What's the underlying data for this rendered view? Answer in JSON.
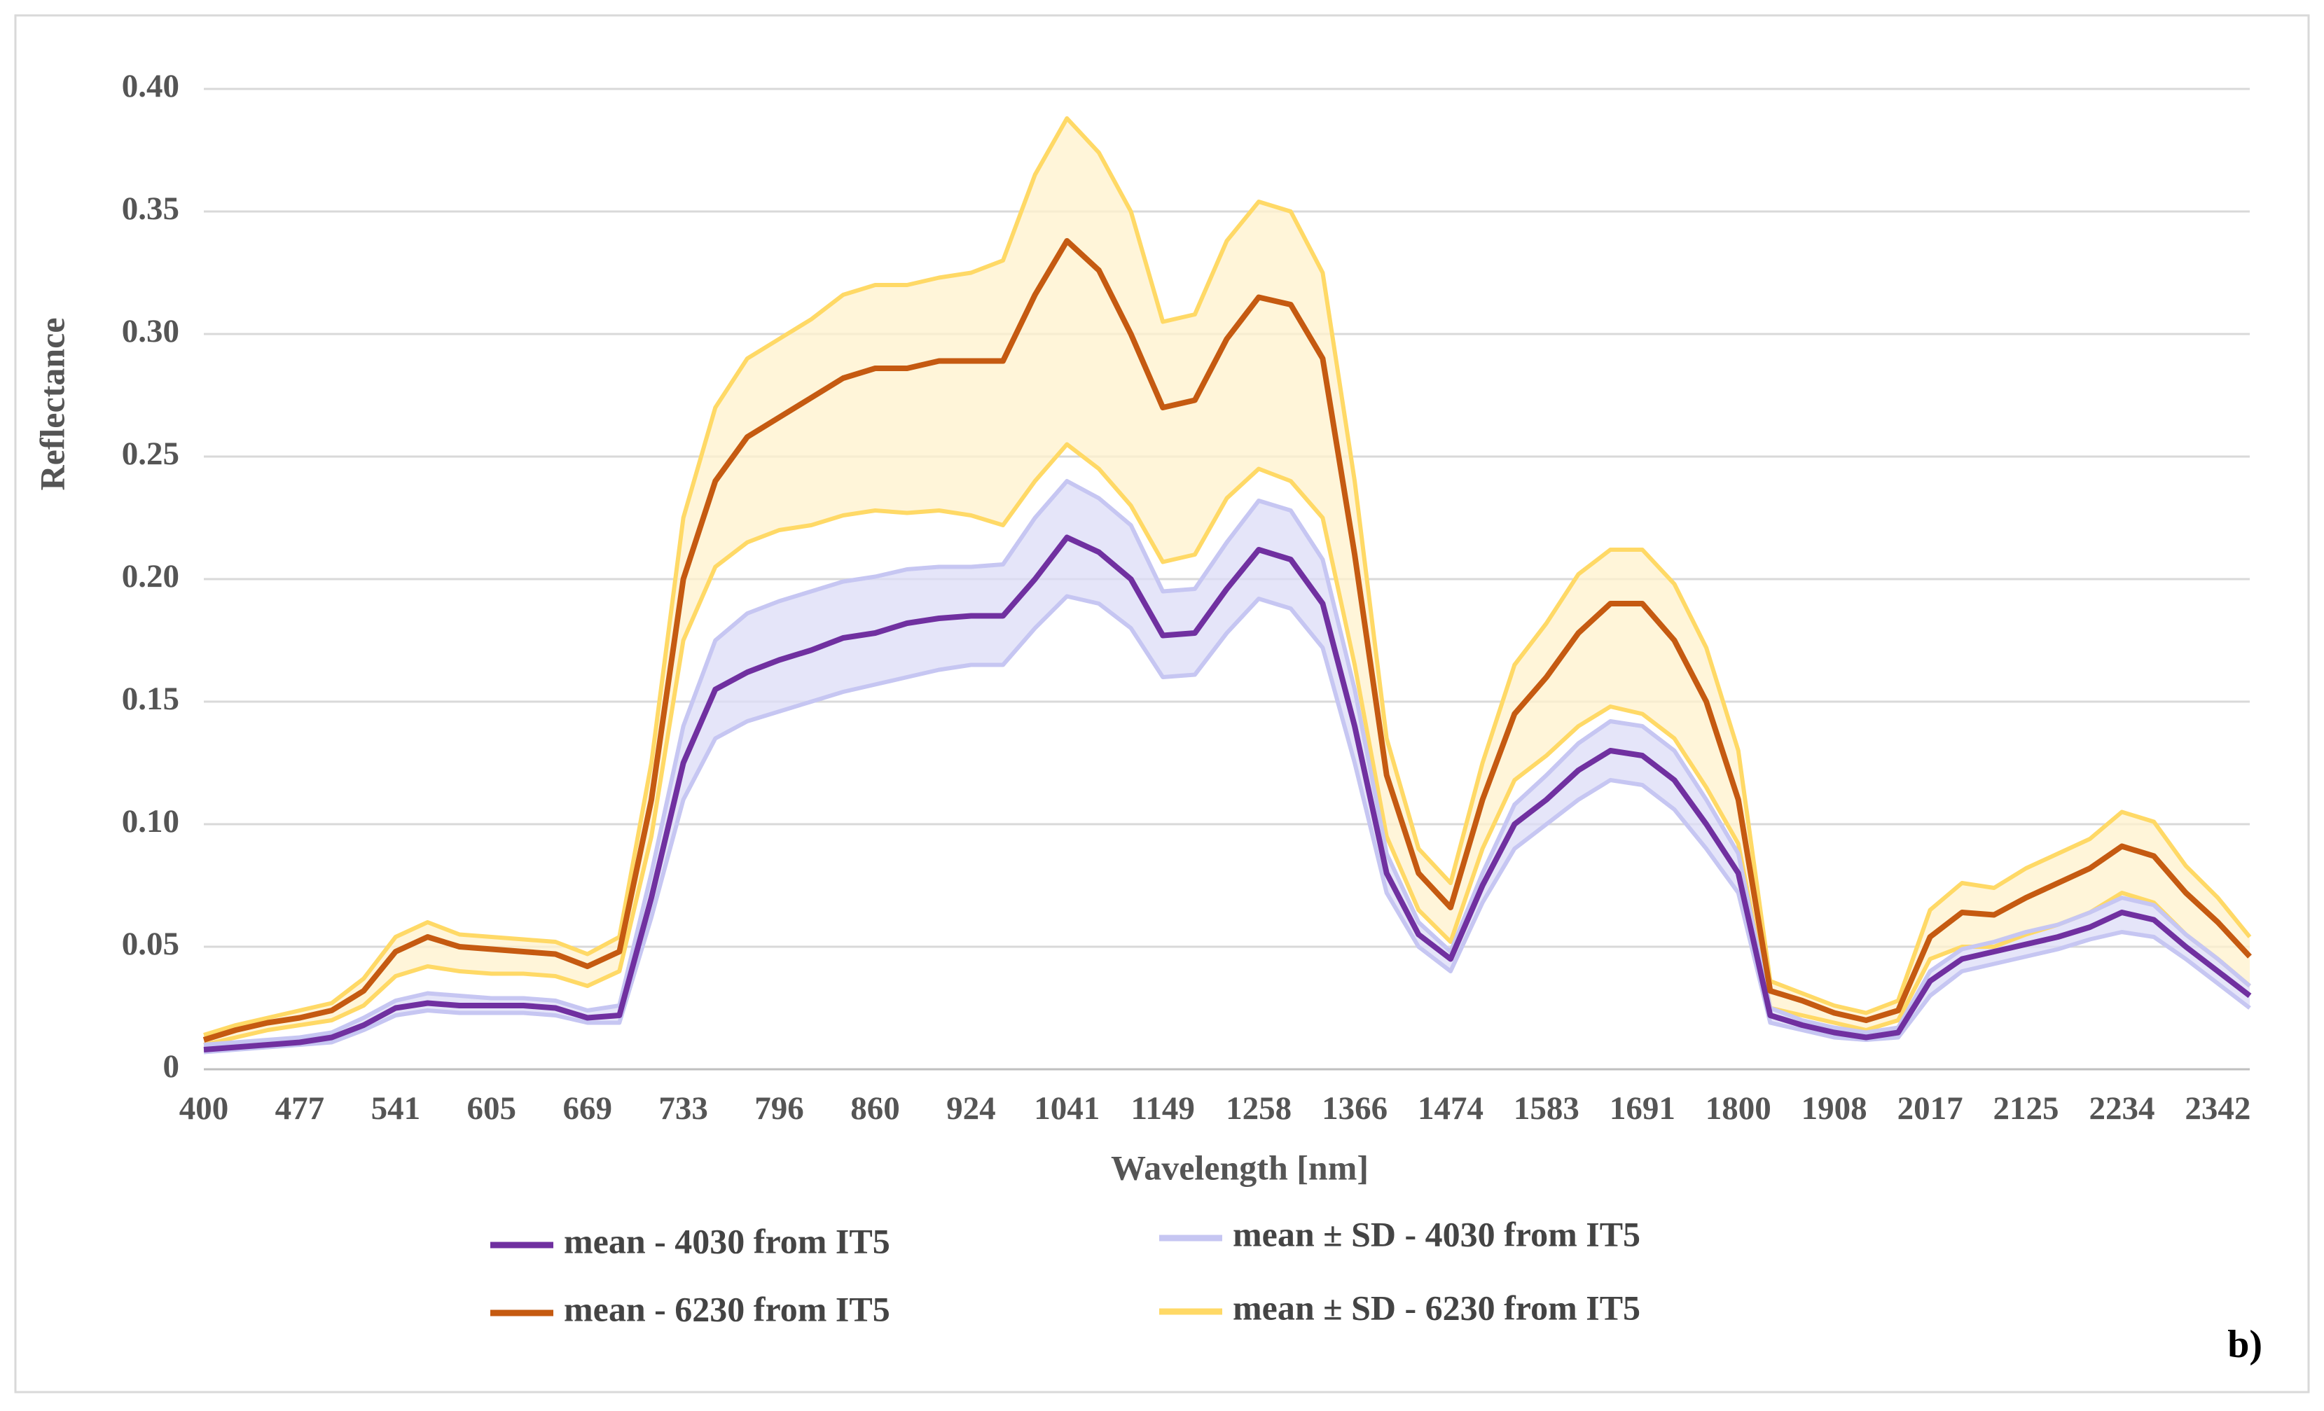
{
  "chart_data": {
    "type": "line",
    "xlabel": "Wavelength [nm]",
    "ylabel": "Reflectance",
    "annotation": "b)",
    "grid": true,
    "ylim": [
      0,
      0.4
    ],
    "yticks": [
      0,
      0.05,
      {
        "value": 0.1,
        "label": "0.10"
      },
      0.15,
      {
        "value": 0.2,
        "label": "0.20"
      },
      0.25,
      {
        "value": 0.3,
        "label": "0.30"
      },
      0.35,
      {
        "value": 0.4,
        "label": "0.40"
      }
    ],
    "categories": [
      "400",
      null,
      null,
      "477",
      null,
      null,
      "541",
      null,
      null,
      "605",
      null,
      null,
      "669",
      null,
      null,
      "733",
      null,
      null,
      "796",
      null,
      null,
      "860",
      null,
      null,
      "924",
      null,
      null,
      "1041",
      null,
      null,
      "1149",
      null,
      null,
      "1258",
      null,
      null,
      "1366",
      null,
      null,
      "1474",
      null,
      null,
      "1583",
      null,
      null,
      "1691",
      null,
      null,
      "1800",
      null,
      null,
      "1908",
      null,
      null,
      "2017",
      null,
      null,
      "2125",
      null,
      null,
      "2234",
      null,
      null,
      "2342",
      null
    ],
    "series": [
      {
        "name": "mean - 4030 from IT5",
        "color": "#7030a0",
        "values": [
          0.008,
          0.009,
          0.01,
          0.011,
          0.013,
          0.018,
          0.025,
          0.027,
          0.026,
          0.026,
          0.026,
          0.025,
          0.021,
          0.022,
          0.07,
          0.125,
          0.155,
          0.162,
          0.167,
          0.171,
          0.176,
          0.178,
          0.182,
          0.184,
          0.185,
          0.185,
          0.2,
          0.217,
          0.211,
          0.2,
          0.177,
          0.178,
          0.196,
          0.212,
          0.208,
          0.19,
          0.14,
          0.08,
          0.055,
          0.045,
          0.075,
          0.1,
          0.11,
          0.122,
          0.13,
          0.128,
          0.118,
          0.1,
          0.08,
          0.022,
          0.018,
          0.015,
          0.013,
          0.015,
          0.036,
          0.045,
          0.048,
          0.051,
          0.054,
          0.058,
          0.064,
          0.061,
          0.05,
          0.04,
          0.03
        ]
      },
      {
        "name": "mean ± SD - 4030 from IT5",
        "color": "#c6c6f2",
        "fill": "#dcdcf7",
        "upper": [
          0.01,
          0.011,
          0.012,
          0.013,
          0.015,
          0.021,
          0.028,
          0.031,
          0.03,
          0.029,
          0.029,
          0.028,
          0.024,
          0.026,
          0.08,
          0.14,
          0.175,
          0.186,
          0.191,
          0.195,
          0.199,
          0.201,
          0.204,
          0.205,
          0.205,
          0.206,
          0.225,
          0.24,
          0.233,
          0.222,
          0.195,
          0.196,
          0.215,
          0.232,
          0.228,
          0.208,
          0.155,
          0.088,
          0.06,
          0.048,
          0.08,
          0.108,
          0.12,
          0.133,
          0.142,
          0.14,
          0.13,
          0.11,
          0.088,
          0.025,
          0.02,
          0.017,
          0.015,
          0.017,
          0.04,
          0.049,
          0.052,
          0.056,
          0.059,
          0.064,
          0.07,
          0.067,
          0.055,
          0.045,
          0.034
        ],
        "lower": [
          0.007,
          0.008,
          0.009,
          0.01,
          0.011,
          0.016,
          0.022,
          0.024,
          0.023,
          0.023,
          0.023,
          0.022,
          0.019,
          0.019,
          0.062,
          0.11,
          0.135,
          0.142,
          0.146,
          0.15,
          0.154,
          0.157,
          0.16,
          0.163,
          0.165,
          0.165,
          0.18,
          0.193,
          0.19,
          0.18,
          0.16,
          0.161,
          0.178,
          0.192,
          0.188,
          0.172,
          0.125,
          0.072,
          0.05,
          0.04,
          0.068,
          0.09,
          0.1,
          0.11,
          0.118,
          0.116,
          0.106,
          0.09,
          0.072,
          0.019,
          0.016,
          0.013,
          0.012,
          0.013,
          0.03,
          0.04,
          0.043,
          0.046,
          0.049,
          0.053,
          0.056,
          0.054,
          0.045,
          0.035,
          0.025
        ]
      },
      {
        "name": "mean - 6230 from IT5",
        "color": "#c55a11",
        "values": [
          0.012,
          0.016,
          0.019,
          0.021,
          0.024,
          0.032,
          0.048,
          0.054,
          0.05,
          0.049,
          0.048,
          0.047,
          0.042,
          0.048,
          0.11,
          0.2,
          0.24,
          0.258,
          0.266,
          0.274,
          0.282,
          0.286,
          0.286,
          0.289,
          0.289,
          0.289,
          0.316,
          0.338,
          0.326,
          0.3,
          0.27,
          0.273,
          0.298,
          0.315,
          0.312,
          0.29,
          0.21,
          0.12,
          0.08,
          0.066,
          0.11,
          0.145,
          0.16,
          0.178,
          0.19,
          0.19,
          0.175,
          0.15,
          0.11,
          0.032,
          0.028,
          0.023,
          0.02,
          0.024,
          0.054,
          0.064,
          0.063,
          0.07,
          0.076,
          0.082,
          0.091,
          0.087,
          0.072,
          0.06,
          0.046
        ]
      },
      {
        "name": "mean ± SD - 6230 from IT5",
        "color": "#ffd966",
        "fill": "#fff2cc",
        "upper": [
          0.014,
          0.018,
          0.021,
          0.024,
          0.027,
          0.037,
          0.054,
          0.06,
          0.055,
          0.054,
          0.053,
          0.052,
          0.047,
          0.054,
          0.125,
          0.225,
          0.27,
          0.29,
          0.298,
          0.306,
          0.316,
          0.32,
          0.32,
          0.323,
          0.325,
          0.33,
          0.365,
          0.388,
          0.374,
          0.35,
          0.305,
          0.308,
          0.338,
          0.354,
          0.35,
          0.325,
          0.24,
          0.135,
          0.09,
          0.076,
          0.125,
          0.165,
          0.182,
          0.202,
          0.212,
          0.212,
          0.198,
          0.172,
          0.13,
          0.036,
          0.031,
          0.026,
          0.023,
          0.028,
          0.065,
          0.076,
          0.074,
          0.082,
          0.088,
          0.094,
          0.105,
          0.101,
          0.083,
          0.07,
          0.054
        ],
        "lower": [
          0.01,
          0.013,
          0.016,
          0.018,
          0.02,
          0.026,
          0.038,
          0.042,
          0.04,
          0.039,
          0.039,
          0.038,
          0.034,
          0.04,
          0.095,
          0.175,
          0.205,
          0.215,
          0.22,
          0.222,
          0.226,
          0.228,
          0.227,
          0.228,
          0.226,
          0.222,
          0.24,
          0.255,
          0.245,
          0.23,
          0.207,
          0.21,
          0.233,
          0.245,
          0.24,
          0.225,
          0.165,
          0.095,
          0.065,
          0.052,
          0.09,
          0.118,
          0.128,
          0.14,
          0.148,
          0.145,
          0.135,
          0.115,
          0.092,
          0.025,
          0.022,
          0.019,
          0.016,
          0.02,
          0.045,
          0.05,
          0.05,
          0.055,
          0.059,
          0.064,
          0.072,
          0.068,
          0.055,
          0.045,
          0.034
        ]
      }
    ]
  }
}
